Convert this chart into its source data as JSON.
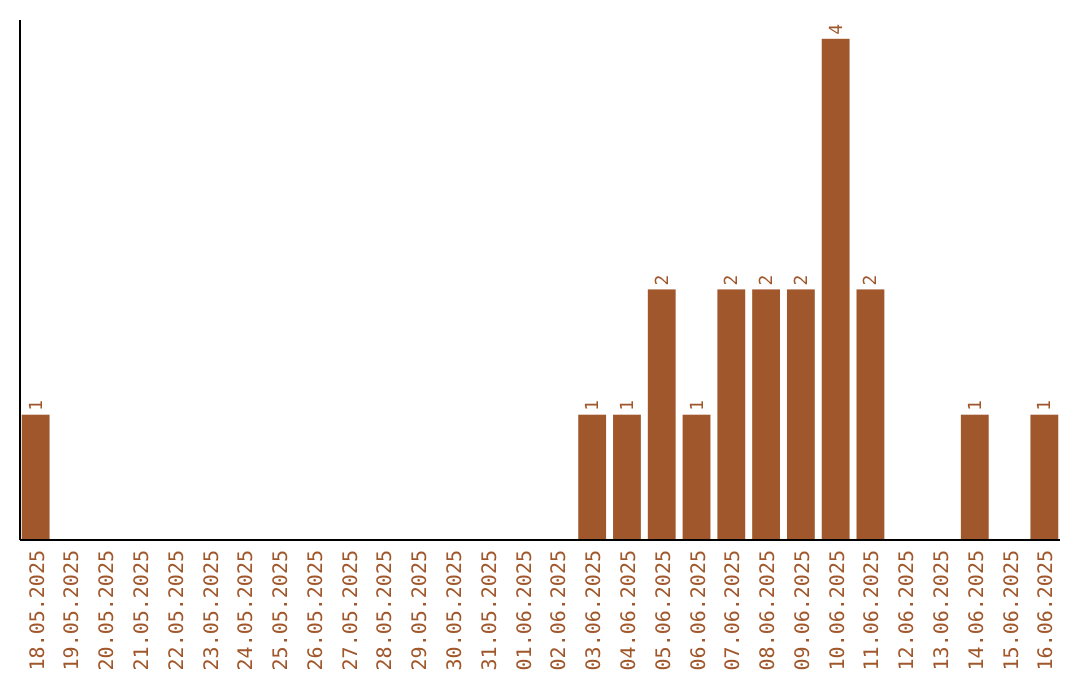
{
  "chart_data": {
    "type": "bar",
    "categories": [
      "18.05.2025",
      "19.05.2025",
      "20.05.2025",
      "21.05.2025",
      "22.05.2025",
      "23.05.2025",
      "24.05.2025",
      "25.05.2025",
      "26.05.2025",
      "27.05.2025",
      "28.05.2025",
      "29.05.2025",
      "30.05.2025",
      "31.05.2025",
      "01.06.2025",
      "02.06.2025",
      "03.06.2025",
      "04.06.2025",
      "05.06.2025",
      "06.06.2025",
      "07.06.2025",
      "08.06.2025",
      "09.06.2025",
      "10.06.2025",
      "11.06.2025",
      "12.06.2025",
      "13.06.2025",
      "14.06.2025",
      "15.06.2025",
      "16.06.2025"
    ],
    "values": [
      1,
      0,
      0,
      0,
      0,
      0,
      0,
      0,
      0,
      0,
      0,
      0,
      0,
      0,
      0,
      0,
      1,
      1,
      2,
      1,
      2,
      2,
      2,
      4,
      2,
      0,
      0,
      1,
      0,
      1
    ],
    "value_labels": [
      "1",
      null,
      null,
      null,
      null,
      null,
      null,
      null,
      null,
      null,
      null,
      null,
      null,
      null,
      null,
      null,
      "1",
      "1",
      "2",
      "1",
      "2",
      "2",
      "2",
      "4",
      "2",
      null,
      null,
      "1",
      null,
      "1"
    ],
    "color": "#a0572b",
    "ylim": [
      0,
      4.15
    ]
  }
}
